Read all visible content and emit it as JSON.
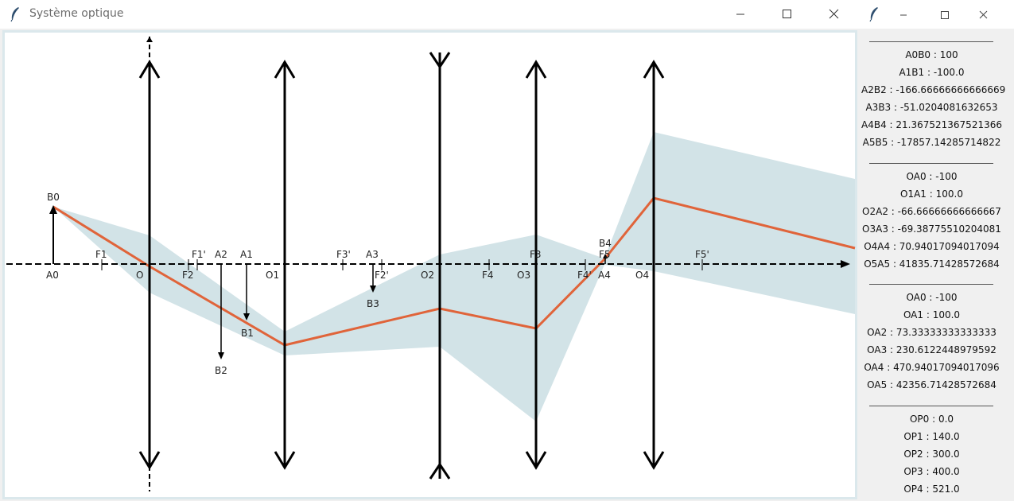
{
  "main_window": {
    "title": "Système optique",
    "controls": {
      "minimize": "minimize",
      "maximize": "maximize",
      "close": "close"
    }
  },
  "side_window": {
    "controls": {
      "minimize": "minimize",
      "maximize": "maximize",
      "close": "close"
    },
    "groups": [
      {
        "items": [
          "A0B0 : 100",
          "A1B1 : -100.0",
          "A2B2 : -166.66666666666669",
          "A3B3 : -51.0204081632653",
          "A4B4 : 21.367521367521366",
          "A5B5 : -17857.14285714822"
        ]
      },
      {
        "items": [
          "OA0 : -100",
          "O1A1 : 100.0",
          "O2A2 : -66.66666666666667",
          "O3A3 : -69.38775510204081",
          "O4A4 : 70.94017094017094",
          "O5A5 : 41835.71428572684"
        ]
      },
      {
        "items": [
          "OA0 : -100",
          "OA1 : 100.0",
          "OA2 : 73.33333333333333",
          "OA3 : 230.6122448979592",
          "OA4 : 470.94017094017096",
          "OA5 : 42356.71428572684"
        ]
      },
      {
        "items": [
          "OP0 : 0.0",
          "OP1 : 140.0",
          "OP2 : 300.0",
          "OP3 : 400.0",
          "OP4 : 521.0"
        ]
      }
    ]
  },
  "diagram": {
    "colors": {
      "ray": "#e0643a",
      "beam": "#d2e3e7",
      "axis": "#000000",
      "frame": "#dbe8ec"
    },
    "lens_labels": [
      "O",
      "O1",
      "O2",
      "O3",
      "O4"
    ],
    "focal_labels": [
      "F1",
      "F1'",
      "F2",
      "F2'",
      "F3'",
      "F3",
      "F4",
      "F4'",
      "F5",
      "F5'"
    ],
    "object_labels": [
      "A0",
      "B0"
    ],
    "image_labels": [
      "A1",
      "B1",
      "A2",
      "B2",
      "A3",
      "B3",
      "A4",
      "B4"
    ]
  }
}
